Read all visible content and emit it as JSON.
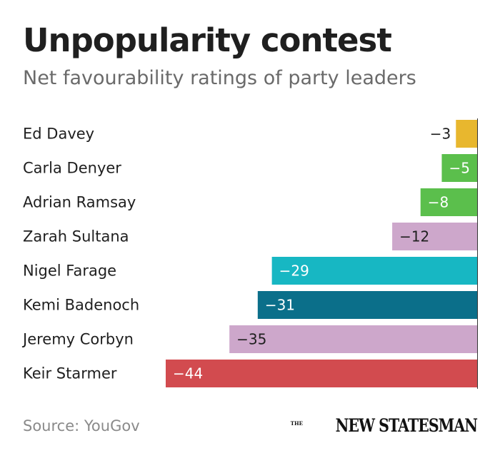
{
  "header": {
    "title": "Unpopularity contest",
    "subtitle": "Net favourability ratings of party leaders"
  },
  "chart_data": {
    "type": "bar",
    "orientation": "horizontal",
    "title": "Unpopularity contest",
    "subtitle": "Net favourability ratings of party leaders",
    "xlim": [
      -44,
      0
    ],
    "categories": [
      "Ed Davey",
      "Carla Denyer",
      "Adrian Ramsay",
      "Zarah Sultana",
      "Nigel Farage",
      "Kemi Badenoch",
      "Jeremy Corbyn",
      "Keir Starmer"
    ],
    "values": [
      -3,
      -5,
      -8,
      -12,
      -29,
      -31,
      -35,
      -44
    ],
    "value_labels": [
      "−3",
      "−5",
      "−8",
      "−12",
      "−29",
      "−31",
      "−35",
      "−44"
    ],
    "colors": [
      "#e8b72e",
      "#5bbf4c",
      "#5bbf4c",
      "#cda7cb",
      "#17b7c3",
      "#0b6f8a",
      "#cda7cb",
      "#d24b4f"
    ],
    "label_colors": [
      "#1f1f1f",
      "#ffffff",
      "#ffffff",
      "#1f1f1f",
      "#ffffff",
      "#ffffff",
      "#1f1f1f",
      "#ffffff"
    ]
  },
  "footer": {
    "source": "Source: YouGov",
    "logo_the": "THE",
    "logo_name": "NEW STATESMAN"
  }
}
